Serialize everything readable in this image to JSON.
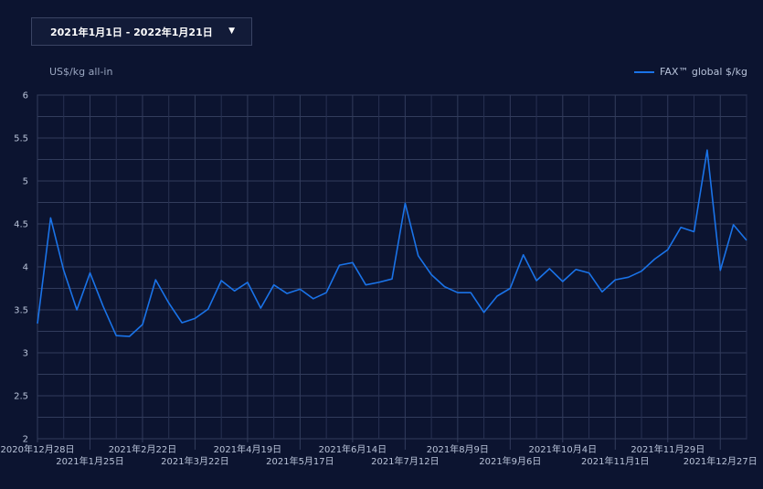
{
  "controls": {
    "date_range": "2021年1月1日 - 2022年1月21日"
  },
  "chart_data": {
    "type": "line",
    "title": "",
    "ylabel": "US$/kg all-in",
    "xlabel": "",
    "ylim": [
      2,
      6
    ],
    "yticks": [
      "2",
      "2.5",
      "3",
      "3.5",
      "4",
      "4.5",
      "5",
      "5.5",
      "6"
    ],
    "grid": true,
    "legend_position": "top-right",
    "xticks": [
      {
        "label": "2020年12月28日",
        "row": 1
      },
      {
        "label": "2021年1月25日",
        "row": 2
      },
      {
        "label": "2021年2月22日",
        "row": 1
      },
      {
        "label": "2021年3月22日",
        "row": 2
      },
      {
        "label": "2021年4月19日",
        "row": 1
      },
      {
        "label": "2021年5月17日",
        "row": 2
      },
      {
        "label": "2021年6月14日",
        "row": 1
      },
      {
        "label": "2021年7月12日",
        "row": 2
      },
      {
        "label": "2021年8月9日",
        "row": 1
      },
      {
        "label": "2021年9月6日",
        "row": 2
      },
      {
        "label": "2021年10月4日",
        "row": 1
      },
      {
        "label": "2021年11月1日",
        "row": 2
      },
      {
        "label": "2021年11月29日",
        "row": 1
      },
      {
        "label": "2021年12月27日",
        "row": 2
      }
    ],
    "series": [
      {
        "name": "FAX™ global $/kg",
        "color": "#1a73e8",
        "values": [
          3.34,
          4.57,
          3.96,
          3.5,
          3.93,
          3.54,
          3.2,
          3.19,
          3.33,
          3.85,
          3.58,
          3.35,
          3.4,
          3.51,
          3.84,
          3.72,
          3.82,
          3.52,
          3.79,
          3.69,
          3.74,
          3.63,
          3.7,
          4.02,
          4.05,
          3.79,
          3.82,
          3.86,
          4.74,
          4.13,
          3.91,
          3.77,
          3.7,
          3.7,
          3.47,
          3.66,
          3.75,
          4.14,
          3.84,
          3.98,
          3.83,
          3.97,
          3.93,
          3.71,
          3.85,
          3.88,
          3.95,
          4.09,
          4.2,
          4.46,
          4.41,
          5.36,
          3.96,
          4.49,
          4.31
        ]
      }
    ]
  }
}
